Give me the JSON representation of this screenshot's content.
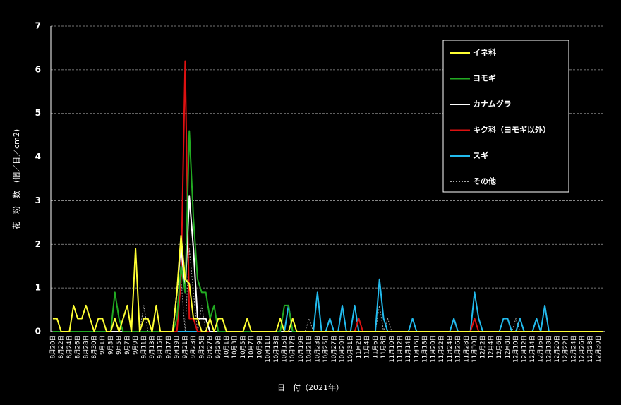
{
  "chart_data": {
    "type": "line",
    "x_label": "日　付（2021年）",
    "y_label": "花　粉　数　(個／日／cm2)",
    "ylim": [
      0,
      7
    ],
    "yticks": [
      0,
      1,
      2,
      3,
      4,
      5,
      6,
      7
    ],
    "grid": true,
    "legend": "upper right",
    "categories": [
      "8月20日",
      null,
      "8月22日",
      null,
      "8月24日",
      null,
      "8月26日",
      null,
      "8月28日",
      null,
      "8月30日",
      null,
      "9月1日",
      null,
      "9月3日",
      null,
      "9月5日",
      null,
      "9月7日",
      null,
      "9月9日",
      null,
      "9月11日",
      null,
      "9月13日",
      null,
      "9月15日",
      null,
      "9月17日",
      null,
      "9月19日",
      null,
      "9月21日",
      null,
      "9月23日",
      null,
      "9月25日",
      null,
      "9月27日",
      null,
      "9月29日",
      null,
      "10月1日",
      null,
      "10月3日",
      null,
      "10月5日",
      null,
      "10月7日",
      null,
      "10月9日",
      null,
      "10月11日",
      null,
      "10月13日",
      null,
      "10月15日",
      null,
      "10月17日",
      null,
      "10月19日",
      null,
      "10月21日",
      null,
      "10月23日",
      null,
      "10月25日",
      null,
      "10月27日",
      null,
      "10月29日",
      null,
      "10月31日",
      null,
      "11月2日",
      null,
      "11月4日",
      null,
      "11月6日",
      null,
      "11月8日",
      null,
      "11月10日",
      null,
      "11月12日",
      null,
      "11月14日",
      null,
      "11月16日",
      null,
      "11月18日",
      null,
      "11月20日",
      null,
      "11月22日",
      null,
      "11月24日",
      null,
      "11月26日",
      null,
      "11月28日",
      null,
      "11月30日",
      null,
      "12月2日",
      null,
      "12月4日",
      null,
      "12月6日",
      null,
      "12月8日",
      null,
      "12月10日",
      null,
      "12月12日",
      null,
      "12月14日",
      null,
      "12月16日",
      null,
      "12月18日",
      null,
      "12月20日",
      null,
      "12月22日",
      null,
      "12月24日",
      null,
      "12月26日",
      null,
      "12月28日",
      null,
      "12月30日",
      null
    ],
    "series": [
      {
        "name": "イネ科",
        "color": "#ffff33",
        "values": [
          0.3,
          0.3,
          0,
          0,
          0,
          0.6,
          0.3,
          0.3,
          0.6,
          0.3,
          0,
          0.3,
          0.3,
          0,
          0,
          0.3,
          0,
          0.3,
          0.6,
          0,
          1.9,
          0,
          0.3,
          0.3,
          0,
          0.6,
          0,
          0,
          0,
          0,
          0.9,
          2.2,
          1.2,
          1.1,
          0.3,
          0.3,
          0,
          0,
          0.3,
          0,
          0.3,
          0.3,
          0,
          0,
          0,
          0,
          0,
          0.3,
          0,
          0,
          0,
          0,
          0,
          0,
          0,
          0.3,
          0,
          0,
          0.3,
          0,
          0,
          0,
          0,
          0,
          0,
          0,
          0,
          0,
          0,
          0,
          0,
          0,
          0,
          0,
          0,
          0,
          0,
          0,
          0,
          0,
          0,
          0,
          0,
          0,
          0,
          0,
          0,
          0,
          0,
          0,
          0,
          0,
          0,
          0,
          0,
          0,
          0,
          0,
          0,
          0,
          0,
          0,
          0,
          0,
          0,
          0,
          0,
          0,
          0,
          0,
          0,
          0,
          0,
          0,
          0,
          0,
          0,
          0,
          0,
          0,
          0,
          0,
          0,
          0,
          0,
          0,
          0,
          0,
          0,
          0,
          0,
          0,
          0,
          0
        ]
      },
      {
        "name": "ヨモギ",
        "color": "#22aa22",
        "values": [
          0,
          0,
          0,
          0,
          0,
          0,
          0,
          0,
          0,
          0,
          0,
          0,
          0,
          0,
          0,
          0.9,
          0.3,
          0,
          0,
          0,
          0,
          0,
          0,
          0,
          0,
          0,
          0,
          0,
          0,
          0,
          0.3,
          1.5,
          0.9,
          4.6,
          2.6,
          1.2,
          0.9,
          0.9,
          0.3,
          0.6,
          0,
          0,
          0,
          0,
          0,
          0,
          0,
          0,
          0,
          0,
          0,
          0,
          0,
          0,
          0,
          0,
          0.6,
          0.6,
          0,
          0,
          0,
          0,
          0,
          0,
          0,
          0,
          0,
          0,
          0,
          0,
          0,
          0,
          0,
          0,
          0,
          0,
          0,
          0,
          0,
          0,
          0,
          0,
          0,
          0,
          0,
          0,
          0,
          0,
          0,
          0,
          0,
          0,
          0,
          0,
          0,
          0,
          0,
          0,
          0,
          0,
          0,
          0,
          0,
          0,
          0,
          0,
          0,
          0,
          0,
          0,
          0,
          0,
          0,
          0,
          0,
          0,
          0,
          0,
          0,
          0,
          0,
          0,
          0,
          0,
          0,
          0,
          0,
          0,
          0,
          0,
          0,
          0,
          0,
          0
        ]
      },
      {
        "name": "カナムグラ",
        "color": "#ffffff",
        "values": [
          0,
          0,
          0,
          0,
          0,
          0,
          0,
          0,
          0,
          0,
          0,
          0,
          0,
          0,
          0,
          0,
          0,
          0,
          0,
          0,
          0,
          0,
          0,
          0,
          0,
          0,
          0,
          0,
          0,
          0,
          0.9,
          2.0,
          0.9,
          3.1,
          1.9,
          0.3,
          0.3,
          0.3,
          0,
          0,
          0,
          0,
          0,
          0,
          0,
          0,
          0,
          0,
          0,
          0,
          0,
          0,
          0,
          0,
          0,
          0,
          0,
          0,
          0,
          0,
          0,
          0,
          0,
          0,
          0,
          0,
          0,
          0,
          0,
          0,
          0,
          0,
          0,
          0,
          0,
          0,
          0,
          0,
          0,
          0,
          0,
          0,
          0,
          0,
          0,
          0,
          0,
          0,
          0,
          0,
          0,
          0,
          0,
          0,
          0,
          0,
          0,
          0,
          0,
          0,
          0,
          0,
          0,
          0,
          0,
          0,
          0,
          0,
          0,
          0,
          0,
          0,
          0,
          0,
          0,
          0,
          0,
          0,
          0,
          0,
          0,
          0,
          0,
          0,
          0,
          0,
          0,
          0,
          0,
          0,
          0,
          0,
          0,
          0
        ]
      },
      {
        "name": "キク科（ヨモギ以外）",
        "color": "#dd1111",
        "values": [
          0,
          0,
          0,
          0,
          0,
          0,
          0,
          0,
          0,
          0,
          0,
          0,
          0,
          0,
          0,
          0,
          0,
          0,
          0,
          0,
          0,
          0,
          0,
          0,
          0,
          0,
          0,
          0,
          0,
          0,
          0,
          1.2,
          6.2,
          0.3,
          0.3,
          0,
          0,
          0,
          0,
          0,
          0,
          0,
          0,
          0,
          0,
          0,
          0,
          0,
          0,
          0,
          0,
          0,
          0,
          0,
          0,
          0,
          0,
          0,
          0,
          0,
          0,
          0,
          0,
          0,
          0,
          0,
          0,
          0,
          0,
          0,
          0,
          0,
          0,
          0,
          0.3,
          0,
          0,
          0,
          0,
          0,
          0,
          0,
          0,
          0,
          0,
          0,
          0,
          0,
          0,
          0,
          0,
          0,
          0,
          0,
          0,
          0,
          0,
          0,
          0,
          0,
          0,
          0,
          0.3,
          0,
          0,
          0,
          0,
          0,
          0,
          0,
          0,
          0,
          0,
          0,
          0,
          0,
          0,
          0,
          0,
          0,
          0,
          0,
          0,
          0,
          0,
          0,
          0,
          0,
          0,
          0,
          0,
          0,
          0,
          0
        ]
      },
      {
        "name": "スギ",
        "color": "#22bbee",
        "values": [
          0,
          0,
          0,
          0,
          0,
          0,
          0,
          0,
          0,
          0,
          0,
          0,
          0,
          0,
          0,
          0,
          0,
          0,
          0,
          0,
          0,
          0,
          0,
          0,
          0,
          0,
          0,
          0,
          0,
          0,
          0,
          0,
          0,
          0,
          0,
          0,
          0,
          0,
          0,
          0,
          0,
          0,
          0,
          0,
          0,
          0,
          0,
          0,
          0,
          0,
          0,
          0,
          0,
          0,
          0,
          0,
          0,
          0.6,
          0,
          0,
          0,
          0,
          0,
          0,
          0.9,
          0,
          0,
          0.3,
          0,
          0,
          0.6,
          0,
          0,
          0.6,
          0,
          0,
          0,
          0,
          0,
          1.2,
          0.3,
          0,
          0,
          0,
          0,
          0,
          0,
          0.3,
          0,
          0,
          0,
          0,
          0,
          0,
          0,
          0,
          0,
          0.3,
          0,
          0,
          0,
          0,
          0.9,
          0.3,
          0,
          0,
          0,
          0,
          0,
          0.3,
          0.3,
          0,
          0,
          0.3,
          0,
          0,
          0,
          0.3,
          0,
          0.6,
          0,
          0,
          0,
          0,
          0,
          0,
          0,
          0,
          0,
          0,
          0,
          0,
          0,
          0
        ]
      },
      {
        "name": "その他",
        "color": "#aaaaaa",
        "dashed": true,
        "values": [
          0,
          0,
          0,
          0,
          0,
          0,
          0,
          0,
          0,
          0,
          0,
          0,
          0,
          0,
          0,
          0,
          0,
          0,
          0,
          0,
          0,
          0,
          0.6,
          0,
          0,
          0,
          0,
          0,
          0,
          0,
          1.0,
          1.2,
          0,
          1.9,
          0.9,
          0,
          0.6,
          0,
          0,
          0,
          0,
          0,
          0,
          0,
          0,
          0,
          0,
          0,
          0,
          0,
          0,
          0,
          0,
          0,
          0,
          0,
          0,
          0,
          0,
          0,
          0,
          0,
          0.3,
          0,
          0,
          0,
          0,
          0,
          0,
          0,
          0,
          0,
          0,
          0,
          0,
          0,
          0,
          0,
          0,
          0.6,
          0,
          0.3,
          0,
          0,
          0,
          0,
          0,
          0,
          0,
          0,
          0,
          0,
          0,
          0,
          0,
          0,
          0,
          0,
          0,
          0,
          0,
          0,
          0,
          0,
          0,
          0,
          0,
          0,
          0,
          0,
          0,
          0,
          0.3,
          0,
          0,
          0,
          0,
          0,
          0,
          0,
          0,
          0,
          0,
          0,
          0,
          0,
          0,
          0,
          0,
          0,
          0,
          0,
          0,
          0
        ]
      }
    ]
  }
}
